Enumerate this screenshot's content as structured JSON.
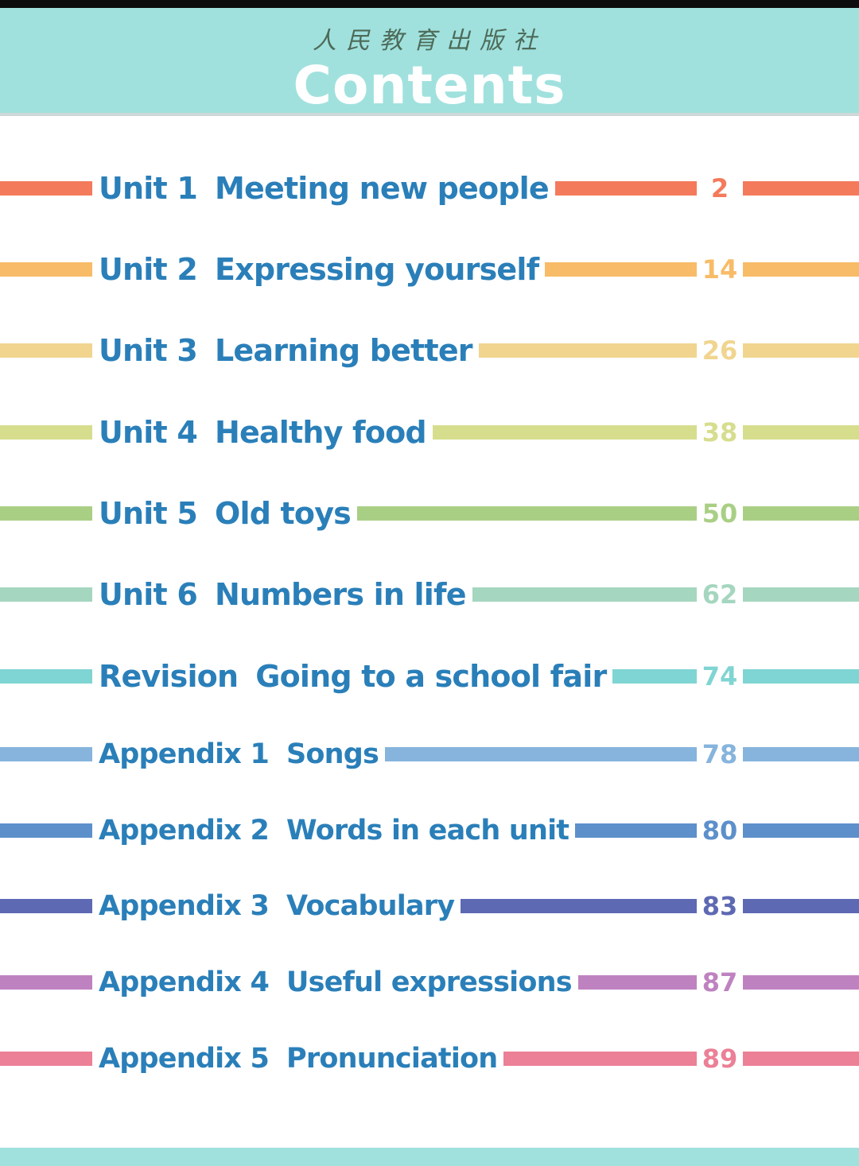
{
  "header": {
    "publisher": "人民教育出版社",
    "title": "Contents"
  },
  "colors": {
    "header_bg": "#a0e1de",
    "entry_text": "#2a7fb9"
  },
  "toc": [
    {
      "number": "Unit 1",
      "name": "Meeting new people",
      "page": "2",
      "color": "#f47a5c"
    },
    {
      "number": "Unit 2",
      "name": "Expressing yourself",
      "page": "14",
      "color": "#f8bb67"
    },
    {
      "number": "Unit 3",
      "name": "Learning better",
      "page": "26",
      "color": "#f1d58f"
    },
    {
      "number": "Unit 4",
      "name": "Healthy food",
      "page": "38",
      "color": "#d6de8e"
    },
    {
      "number": "Unit 5",
      "name": "Old toys",
      "page": "50",
      "color": "#a9cf85"
    },
    {
      "number": "Unit 6",
      "name": "Numbers in life",
      "page": "62",
      "color": "#a5d6bf"
    },
    {
      "number": "Revision",
      "name": "Going to a school fair",
      "page": "74",
      "color": "#7fd5d3"
    },
    {
      "number": "Appendix 1",
      "name": "Songs",
      "page": "78",
      "color": "#86b4dd"
    },
    {
      "number": "Appendix 2",
      "name": "Words in each unit",
      "page": "80",
      "color": "#5d90cb"
    },
    {
      "number": "Appendix 3",
      "name": "Vocabulary",
      "page": "83",
      "color": "#5e69b3"
    },
    {
      "number": "Appendix 4",
      "name": "Useful expressions",
      "page": "87",
      "color": "#bf82c0"
    },
    {
      "number": "Appendix 5",
      "name": "Pronunciation",
      "page": "89",
      "color": "#eb8096"
    }
  ]
}
